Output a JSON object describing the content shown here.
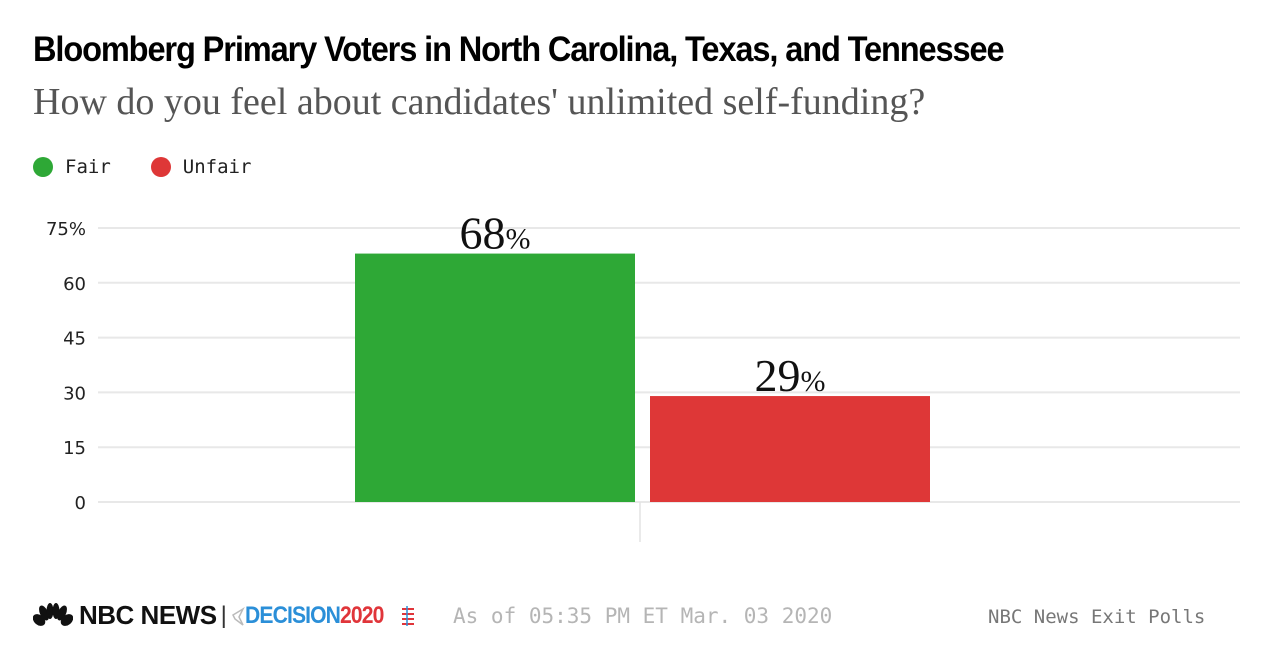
{
  "header": {
    "title": "Bloomberg Primary Voters in North Carolina, Texas, and Tennessee",
    "subtitle": "How do you feel about candidates' unlimited self-funding?"
  },
  "legend": [
    {
      "label": "Fair",
      "color": "#2ea836"
    },
    {
      "label": "Unfair",
      "color": "#de3737"
    }
  ],
  "chart_data": {
    "type": "bar",
    "title": "Bloomberg Primary Voters in North Carolina, Texas, and Tennessee",
    "subtitle": "How do you feel about candidates' unlimited self-funding?",
    "categories": [
      "Fair",
      "Unfair"
    ],
    "values": [
      68,
      29
    ],
    "value_labels": [
      "68%",
      "29%"
    ],
    "colors": [
      "#2ea836",
      "#de3737"
    ],
    "xlabel": "",
    "ylabel": "",
    "ylim": [
      0,
      75
    ],
    "yticks": [
      0,
      15,
      30,
      45,
      60,
      75
    ],
    "ytick_labels": [
      "0",
      "15",
      "30",
      "45",
      "60",
      "75%"
    ],
    "grid": true,
    "legend_position": "top-left"
  },
  "footer": {
    "brand": "NBC NEWS",
    "divider": "|",
    "decision": "DECISION",
    "decision_year": "2020",
    "as_of": "As of 05:35 PM ET Mar. 03 2020",
    "source": "NBC News Exit Polls"
  }
}
